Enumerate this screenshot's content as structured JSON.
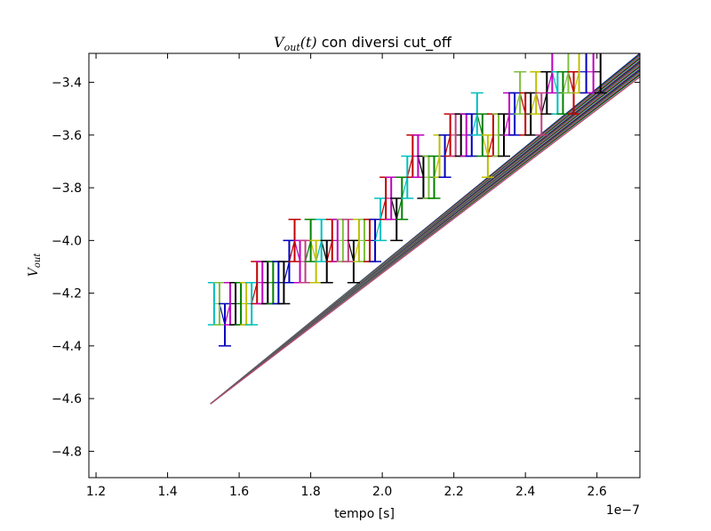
{
  "chart_data": {
    "type": "line",
    "title": {
      "math_main": "V",
      "math_sub": "out",
      "math_arg": "(t)",
      "text": " con diversi cut_off"
    },
    "xlabel": "tempo [s]",
    "ylabel": {
      "main": "V",
      "sub": "out"
    },
    "x_offset_label": "1e−7",
    "xlim": [
      1.18,
      2.72
    ],
    "ylim": [
      -4.9,
      -3.29
    ],
    "x_ticks": [
      1.2,
      1.4,
      1.6,
      1.8,
      2.0,
      2.2,
      2.4,
      2.6
    ],
    "x_tick_labels": [
      "1.2",
      "1.4",
      "1.6",
      "1.8",
      "2.0",
      "2.2",
      "2.4",
      "2.6"
    ],
    "y_ticks": [
      -4.8,
      -4.6,
      -4.4,
      -4.2,
      -4.0,
      -3.8,
      -3.6,
      -3.4
    ],
    "y_tick_labels": [
      "−4.8",
      "−4.6",
      "−4.4",
      "−4.2",
      "−4.0",
      "−3.8",
      "−3.6",
      "−3.4"
    ],
    "grid": false,
    "fit_lines": {
      "x_start": 1.52,
      "y_start": -4.62,
      "x_end": 2.72,
      "y_end": -3.29,
      "count": 30,
      "spread": 0.09,
      "colors": [
        "#0000bf",
        "#008000",
        "#bf0000",
        "#00bfbf",
        "#bf00bf",
        "#bfbf00",
        "#000000",
        "#1f77b4",
        "#7fbf3f",
        "#bf3f7f"
      ]
    },
    "error_bars": {
      "err": 0.08,
      "points": [
        {
          "x": 1.53,
          "y": -4.24,
          "color": "#00bfbf"
        },
        {
          "x": 1.545,
          "y": -4.24,
          "color": "#7fbf3f"
        },
        {
          "x": 1.56,
          "y": -4.32,
          "color": "#0000bf"
        },
        {
          "x": 1.575,
          "y": -4.24,
          "color": "#bf00bf"
        },
        {
          "x": 1.59,
          "y": -4.24,
          "color": "#000000"
        },
        {
          "x": 1.605,
          "y": -4.24,
          "color": "#008000"
        },
        {
          "x": 1.62,
          "y": -4.24,
          "color": "#bfbf00"
        },
        {
          "x": 1.635,
          "y": -4.24,
          "color": "#00bfbf"
        },
        {
          "x": 1.65,
          "y": -4.16,
          "color": "#bf0000"
        },
        {
          "x": 1.665,
          "y": -4.16,
          "color": "#bf00bf"
        },
        {
          "x": 1.68,
          "y": -4.16,
          "color": "#000000"
        },
        {
          "x": 1.695,
          "y": -4.16,
          "color": "#008000"
        },
        {
          "x": 1.71,
          "y": -4.16,
          "color": "#0000bf"
        },
        {
          "x": 1.725,
          "y": -4.16,
          "color": "#000000"
        },
        {
          "x": 1.74,
          "y": -4.08,
          "color": "#0000bf"
        },
        {
          "x": 1.755,
          "y": -4.0,
          "color": "#bf0000"
        },
        {
          "x": 1.77,
          "y": -4.08,
          "color": "#bf00bf"
        },
        {
          "x": 1.785,
          "y": -4.08,
          "color": "#bf3f7f"
        },
        {
          "x": 1.8,
          "y": -4.0,
          "color": "#008000"
        },
        {
          "x": 1.815,
          "y": -4.08,
          "color": "#bfbf00"
        },
        {
          "x": 1.83,
          "y": -4.0,
          "color": "#00bfbf"
        },
        {
          "x": 1.845,
          "y": -4.08,
          "color": "#000000"
        },
        {
          "x": 1.86,
          "y": -4.0,
          "color": "#bf0000"
        },
        {
          "x": 1.875,
          "y": -4.0,
          "color": "#bf00bf"
        },
        {
          "x": 1.89,
          "y": -4.0,
          "color": "#7fbf3f"
        },
        {
          "x": 1.905,
          "y": -4.0,
          "color": "#bf3f7f"
        },
        {
          "x": 1.92,
          "y": -4.08,
          "color": "#000000"
        },
        {
          "x": 1.935,
          "y": -4.0,
          "color": "#bfbf00"
        },
        {
          "x": 1.95,
          "y": -4.0,
          "color": "#7fbf3f"
        },
        {
          "x": 1.965,
          "y": -4.0,
          "color": "#bf0000"
        },
        {
          "x": 1.98,
          "y": -4.0,
          "color": "#0000bf"
        },
        {
          "x": 1.995,
          "y": -3.92,
          "color": "#00bfbf"
        },
        {
          "x": 2.01,
          "y": -3.84,
          "color": "#bf0000"
        },
        {
          "x": 2.025,
          "y": -3.84,
          "color": "#bf00bf"
        },
        {
          "x": 2.04,
          "y": -3.92,
          "color": "#000000"
        },
        {
          "x": 2.055,
          "y": -3.84,
          "color": "#008000"
        },
        {
          "x": 2.07,
          "y": -3.76,
          "color": "#00bfbf"
        },
        {
          "x": 2.085,
          "y": -3.68,
          "color": "#bf0000"
        },
        {
          "x": 2.1,
          "y": -3.68,
          "color": "#bf00bf"
        },
        {
          "x": 2.115,
          "y": -3.76,
          "color": "#000000"
        },
        {
          "x": 2.13,
          "y": -3.76,
          "color": "#7fbf3f"
        },
        {
          "x": 2.145,
          "y": -3.76,
          "color": "#008000"
        },
        {
          "x": 2.16,
          "y": -3.68,
          "color": "#bfbf00"
        },
        {
          "x": 2.175,
          "y": -3.68,
          "color": "#0000bf"
        },
        {
          "x": 2.19,
          "y": -3.6,
          "color": "#bf0000"
        },
        {
          "x": 2.205,
          "y": -3.6,
          "color": "#bf3f7f"
        },
        {
          "x": 2.22,
          "y": -3.6,
          "color": "#000000"
        },
        {
          "x": 2.235,
          "y": -3.6,
          "color": "#bf00bf"
        },
        {
          "x": 2.25,
          "y": -3.6,
          "color": "#0000bf"
        },
        {
          "x": 2.265,
          "y": -3.52,
          "color": "#00bfbf"
        },
        {
          "x": 2.28,
          "y": -3.6,
          "color": "#008000"
        },
        {
          "x": 2.295,
          "y": -3.68,
          "color": "#bfbf00"
        },
        {
          "x": 2.31,
          "y": -3.6,
          "color": "#bf0000"
        },
        {
          "x": 2.325,
          "y": -3.6,
          "color": "#7fbf3f"
        },
        {
          "x": 2.34,
          "y": -3.6,
          "color": "#000000"
        },
        {
          "x": 2.355,
          "y": -3.52,
          "color": "#bf00bf"
        },
        {
          "x": 2.37,
          "y": -3.52,
          "color": "#0000bf"
        },
        {
          "x": 2.385,
          "y": -3.44,
          "color": "#7fbf3f"
        },
        {
          "x": 2.4,
          "y": -3.52,
          "color": "#bf0000"
        },
        {
          "x": 2.415,
          "y": -3.52,
          "color": "#000000"
        },
        {
          "x": 2.43,
          "y": -3.44,
          "color": "#bfbf00"
        },
        {
          "x": 2.445,
          "y": -3.52,
          "color": "#bf3f7f"
        },
        {
          "x": 2.46,
          "y": -3.44,
          "color": "#000000"
        },
        {
          "x": 2.475,
          "y": -3.36,
          "color": "#bf00bf"
        },
        {
          "x": 2.49,
          "y": -3.44,
          "color": "#00bfbf"
        },
        {
          "x": 2.505,
          "y": -3.44,
          "color": "#008000"
        },
        {
          "x": 2.52,
          "y": -3.36,
          "color": "#7fbf3f"
        },
        {
          "x": 2.535,
          "y": -3.44,
          "color": "#bf0000"
        },
        {
          "x": 2.55,
          "y": -3.36,
          "color": "#bfbf00"
        },
        {
          "x": 2.57,
          "y": -3.36,
          "color": "#0000bf"
        },
        {
          "x": 2.59,
          "y": -3.36,
          "color": "#bf00bf"
        },
        {
          "x": 2.61,
          "y": -3.36,
          "color": "#000000"
        }
      ]
    }
  }
}
